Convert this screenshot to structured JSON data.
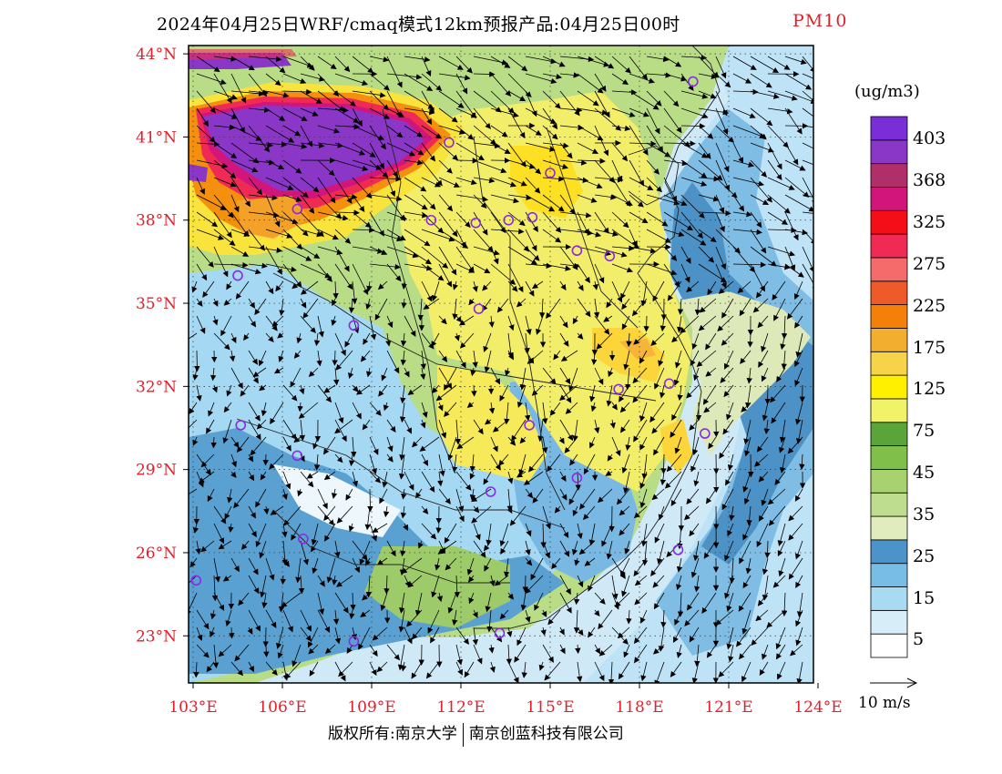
{
  "title": {
    "main": "2024年04月25日WRF/cmaq模式12km预报产品:04月25日00时",
    "variable": "PM10"
  },
  "footer": {
    "left": "版权所有:南京大学",
    "right": "南京创蓝科技有限公司"
  },
  "map": {
    "lon_range": [
      103,
      124
    ],
    "lat_range": [
      21.3,
      44.3
    ],
    "lon_ticks": [
      "103°E",
      "106°E",
      "109°E",
      "112°E",
      "115°E",
      "118°E",
      "121°E",
      "124°E"
    ],
    "lon_tick_values": [
      103,
      106,
      109,
      112,
      115,
      118,
      121,
      124
    ],
    "lat_ticks": [
      "44°N",
      "41°N",
      "38°N",
      "35°N",
      "32°N",
      "29°N",
      "26°N",
      "23°N"
    ],
    "lat_tick_values": [
      44,
      41,
      38,
      35,
      32,
      29,
      26,
      23
    ],
    "tick_color": "#e0202a",
    "ocean_color": "#cfe9f7",
    "cities": [
      [
        103.1,
        25.0
      ],
      [
        104.5,
        36.0
      ],
      [
        106.5,
        38.4
      ],
      [
        108.4,
        34.2
      ],
      [
        104.6,
        30.6
      ],
      [
        106.5,
        29.5
      ],
      [
        106.7,
        26.5
      ],
      [
        108.4,
        22.8
      ],
      [
        111.0,
        38.0
      ],
      [
        112.5,
        37.9
      ],
      [
        113.6,
        38.0
      ],
      [
        114.4,
        38.1
      ],
      [
        115.0,
        39.7
      ],
      [
        115.9,
        36.9
      ],
      [
        112.6,
        34.8
      ],
      [
        114.3,
        30.6
      ],
      [
        113.0,
        28.2
      ],
      [
        115.9,
        28.7
      ],
      [
        117.3,
        31.9
      ],
      [
        119.0,
        32.1
      ],
      [
        120.2,
        30.3
      ],
      [
        119.3,
        26.1
      ],
      [
        113.3,
        23.1
      ],
      [
        119.8,
        43.0
      ],
      [
        117.0,
        36.7
      ],
      [
        111.6,
        40.8
      ]
    ]
  },
  "legend": {
    "unit": "(ug/m3)",
    "labels": [
      "403",
      "368",
      "325",
      "275",
      "225",
      "175",
      "125",
      "75",
      "45",
      "35",
      "25",
      "15",
      "5"
    ],
    "colors": [
      "#ffffff",
      "#d7eef9",
      "#a8dbf2",
      "#78bde6",
      "#4b93c8",
      "#e0ecbe",
      "#bedd8f",
      "#a7d26f",
      "#7fbf4a",
      "#5aa53a",
      "#f1f268",
      "#fff000",
      "#f7d34a",
      "#f2ae2e",
      "#f4800a",
      "#ee5a2a",
      "#f56a6a",
      "#ef2b55",
      "#f40e16",
      "#d2157a",
      "#b02f6a",
      "#8a37c8",
      "#7a2ed8"
    ]
  },
  "wind_scale": {
    "label": "10 m/s"
  }
}
